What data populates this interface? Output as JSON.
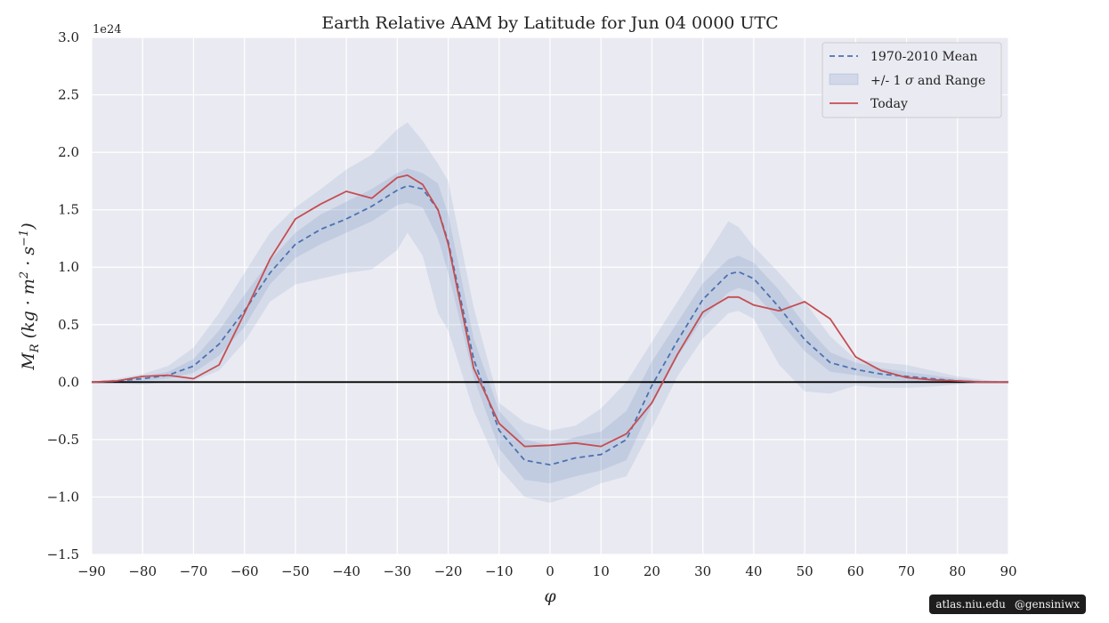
{
  "chart_data": {
    "type": "line",
    "title": "Earth Relative AAM by Latitude for Jun 04 0000 UTC",
    "xlabel": "φ",
    "ylabel": "M_R (kg·m²·s⁻¹)",
    "ylabel_parts": {
      "M": "M",
      "sub": "R",
      "inner": "kg · m",
      "sup1": "2",
      "s": " · s",
      "sup2": "−1"
    },
    "y_offset_label": "1e24",
    "xlim": [
      -90,
      90
    ],
    "ylim": [
      -1.5,
      3.0
    ],
    "x_ticks": [
      -90,
      -80,
      -70,
      -60,
      -50,
      -40,
      -30,
      -20,
      -10,
      0,
      10,
      20,
      30,
      40,
      50,
      60,
      70,
      80,
      90
    ],
    "y_ticks": [
      -1.5,
      -1.0,
      -0.5,
      0.0,
      0.5,
      1.0,
      1.5,
      2.0,
      2.5,
      3.0
    ],
    "x_tick_labels": [
      "−90",
      "−80",
      "−70",
      "−60",
      "−50",
      "−40",
      "−30",
      "−20",
      "−10",
      "0",
      "10",
      "20",
      "30",
      "40",
      "50",
      "60",
      "70",
      "80",
      "90"
    ],
    "y_tick_labels": [
      "−1.5",
      "−1.0",
      "−0.5",
      "0.0",
      "0.5",
      "1.0",
      "1.5",
      "2.0",
      "2.5",
      "3.0"
    ],
    "grid": true,
    "legend_position": "top-right",
    "legend": [
      {
        "label": "1970-2010 Mean"
      },
      {
        "label_pre": "+/- 1 ",
        "label_sigma": "σ",
        "label_post": " and Range"
      },
      {
        "label": "Today"
      }
    ],
    "x": [
      -90,
      -85,
      -80,
      -75,
      -70,
      -65,
      -60,
      -55,
      -50,
      -45,
      -40,
      -35,
      -30,
      -28,
      -25,
      -22,
      -20,
      -15,
      -10,
      -5,
      0,
      5,
      10,
      15,
      20,
      25,
      30,
      35,
      37,
      40,
      45,
      50,
      55,
      60,
      65,
      70,
      75,
      80,
      85,
      90
    ],
    "series": [
      {
        "name": "1970-2010 Mean",
        "style": "dashed",
        "color": "#4c72b0",
        "values": [
          0,
          0.01,
          0.03,
          0.06,
          0.14,
          0.33,
          0.62,
          0.95,
          1.2,
          1.33,
          1.42,
          1.53,
          1.67,
          1.71,
          1.68,
          1.5,
          1.22,
          0.2,
          -0.42,
          -0.68,
          -0.72,
          -0.66,
          -0.63,
          -0.5,
          -0.03,
          0.36,
          0.72,
          0.94,
          0.96,
          0.9,
          0.65,
          0.37,
          0.17,
          0.11,
          0.07,
          0.05,
          0.03,
          0.01,
          0,
          0
        ]
      },
      {
        "name": "Today",
        "style": "solid",
        "color": "#c44e52",
        "values": [
          0,
          0.01,
          0.05,
          0.06,
          0.03,
          0.15,
          0.6,
          1.07,
          1.42,
          1.55,
          1.66,
          1.6,
          1.78,
          1.8,
          1.72,
          1.5,
          1.2,
          0.12,
          -0.36,
          -0.56,
          -0.55,
          -0.53,
          -0.56,
          -0.45,
          -0.18,
          0.24,
          0.61,
          0.74,
          0.74,
          0.67,
          0.62,
          0.7,
          0.55,
          0.22,
          0.1,
          0.04,
          0.02,
          0.01,
          0,
          0
        ]
      }
    ],
    "band_sigma": {
      "lower": [
        0,
        0.0,
        0.01,
        0.03,
        0.08,
        0.23,
        0.48,
        0.85,
        1.08,
        1.2,
        1.3,
        1.4,
        1.54,
        1.56,
        1.52,
        1.25,
        0.95,
        0.04,
        -0.58,
        -0.85,
        -0.88,
        -0.82,
        -0.77,
        -0.68,
        -0.2,
        0.22,
        0.55,
        0.78,
        0.82,
        0.78,
        0.53,
        0.27,
        0.09,
        0.06,
        0.03,
        0.01,
        0.0,
        -0.01,
        0,
        0
      ],
      "upper": [
        0,
        0.02,
        0.05,
        0.09,
        0.2,
        0.45,
        0.76,
        1.06,
        1.3,
        1.46,
        1.57,
        1.68,
        1.82,
        1.86,
        1.82,
        1.73,
        1.46,
        0.38,
        -0.25,
        -0.5,
        -0.55,
        -0.48,
        -0.43,
        -0.25,
        0.18,
        0.52,
        0.86,
        1.07,
        1.1,
        1.04,
        0.8,
        0.5,
        0.26,
        0.17,
        0.12,
        0.09,
        0.06,
        0.03,
        0.01,
        0
      ]
    },
    "band_range": {
      "lower": [
        0,
        -0.01,
        -0.02,
        0.0,
        0.01,
        0.1,
        0.35,
        0.7,
        0.85,
        0.9,
        0.95,
        0.98,
        1.15,
        1.3,
        1.1,
        0.6,
        0.45,
        -0.25,
        -0.75,
        -1.0,
        -1.05,
        -0.98,
        -0.88,
        -0.82,
        -0.4,
        0.05,
        0.38,
        0.6,
        0.62,
        0.55,
        0.15,
        -0.08,
        -0.1,
        -0.03,
        -0.05,
        -0.05,
        -0.04,
        -0.02,
        0,
        0
      ],
      "upper": [
        0,
        0.03,
        0.07,
        0.14,
        0.3,
        0.6,
        0.95,
        1.3,
        1.52,
        1.68,
        1.85,
        1.98,
        2.2,
        2.26,
        2.1,
        1.9,
        1.75,
        0.65,
        -0.18,
        -0.35,
        -0.42,
        -0.38,
        -0.23,
        0.0,
        0.35,
        0.7,
        1.05,
        1.4,
        1.35,
        1.18,
        0.95,
        0.7,
        0.4,
        0.2,
        0.17,
        0.15,
        0.1,
        0.05,
        0.02,
        0
      ]
    },
    "colors": {
      "background": "#eaeaf2",
      "band": "#4c72b0",
      "zero_line": "#000000"
    }
  },
  "watermark": {
    "site": "atlas.niu.edu",
    "handle": "@gensiniwx"
  }
}
